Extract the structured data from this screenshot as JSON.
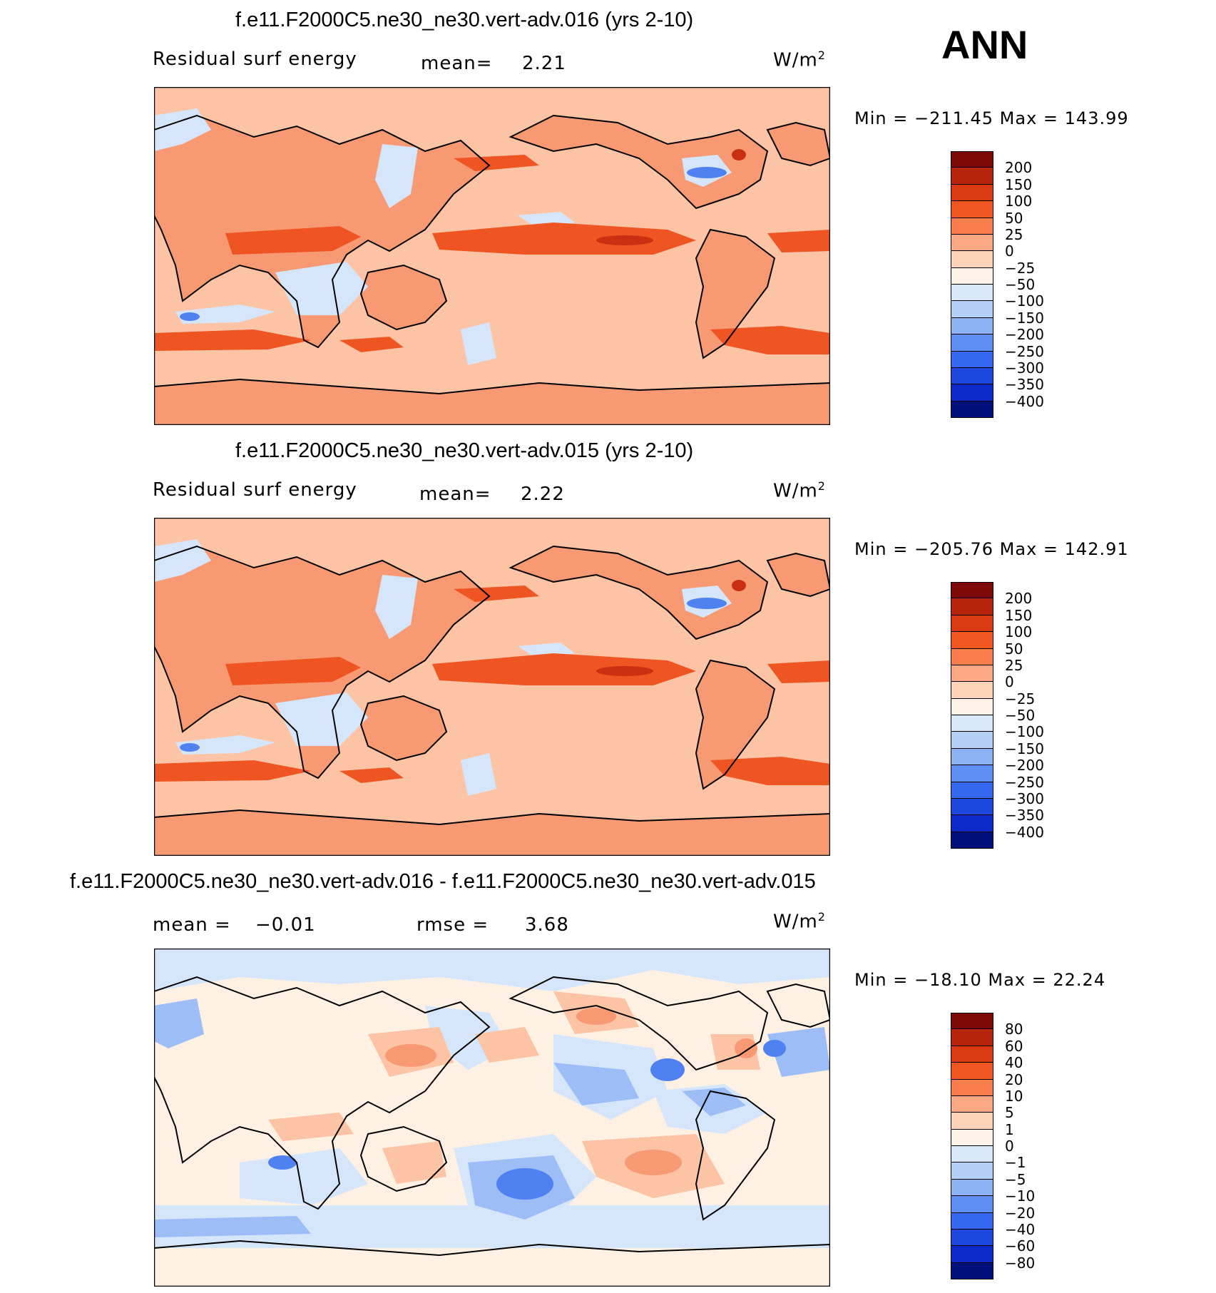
{
  "season": "ANN",
  "panels": [
    {
      "title": "f.e11.F2000C5.ne30_ne30.vert-adv.016 (yrs 2-10)",
      "left_label": "Residual surf energy",
      "stat1_label": "mean=",
      "stat1_value": "2.21",
      "stat2_label": "",
      "stat2_value": "",
      "units": "W/m",
      "units_sup": "2",
      "minmax": "Min = −211.45 Max = 143.99",
      "legend": {
        "labels": [
          "200",
          "150",
          "100",
          "50",
          "25",
          "0",
          "−25",
          "−50",
          "−100",
          "−150",
          "−200",
          "−250",
          "−300",
          "−350",
          "−400"
        ],
        "colors": [
          "#7d0a09",
          "#b8250d",
          "#d93a12",
          "#f0561f",
          "#f77d4d",
          "#fca885",
          "#fdd3b9",
          "#fff2e6",
          "#d7e8f8",
          "#b4d0f6",
          "#8cb3f6",
          "#5f8ff4",
          "#3468ee",
          "#1c48de",
          "#0c2ac8",
          "#02107d"
        ]
      }
    },
    {
      "title": "f.e11.F2000C5.ne30_ne30.vert-adv.015 (yrs 2-10)",
      "left_label": "Residual surf energy",
      "stat1_label": "mean=",
      "stat1_value": "2.22",
      "stat2_label": "",
      "stat2_value": "",
      "units": "W/m",
      "units_sup": "2",
      "minmax": "Min = −205.76 Max = 142.91",
      "legend": {
        "labels": [
          "200",
          "150",
          "100",
          "50",
          "25",
          "0",
          "−25",
          "−50",
          "−100",
          "−150",
          "−200",
          "−250",
          "−300",
          "−350",
          "−400"
        ],
        "colors": [
          "#7d0a09",
          "#b8250d",
          "#d93a12",
          "#f0561f",
          "#f77d4d",
          "#fca885",
          "#fdd3b9",
          "#fff2e6",
          "#d7e8f8",
          "#b4d0f6",
          "#8cb3f6",
          "#5f8ff4",
          "#3468ee",
          "#1c48de",
          "#0c2ac8",
          "#02107d"
        ]
      }
    },
    {
      "title": "f.e11.F2000C5.ne30_ne30.vert-adv.016 - f.e11.F2000C5.ne30_ne30.vert-adv.015",
      "left_label": "",
      "stat1_label": "mean =",
      "stat1_value": "−0.01",
      "stat2_label": "rmse =",
      "stat2_value": "3.68",
      "units": "W/m",
      "units_sup": "2",
      "minmax": "Min = −18.10 Max =  22.24",
      "legend": {
        "labels": [
          "80",
          "60",
          "40",
          "20",
          "10",
          "5",
          "1",
          "0",
          "−1",
          "−5",
          "−10",
          "−20",
          "−40",
          "−60",
          "−80"
        ],
        "colors": [
          "#7d0a09",
          "#b8250d",
          "#d93a12",
          "#f0561f",
          "#f77d4d",
          "#fca885",
          "#fdd3b9",
          "#fff2e6",
          "#d7e8f8",
          "#b4d0f6",
          "#8cb3f6",
          "#5f8ff4",
          "#3468ee",
          "#1c48de",
          "#0c2ac8",
          "#02107d"
        ]
      }
    }
  ],
  "map_palette": {
    "land_warm": "#f79a74",
    "ocean_light": "#fcc3a4",
    "band_strong": "#ef5522",
    "band_dark": "#c93012",
    "cool_light": "#d6e6fa",
    "cool_mid": "#9cbdf6",
    "cool_strong": "#4f82f0",
    "neutral": "#fff0e4"
  }
}
